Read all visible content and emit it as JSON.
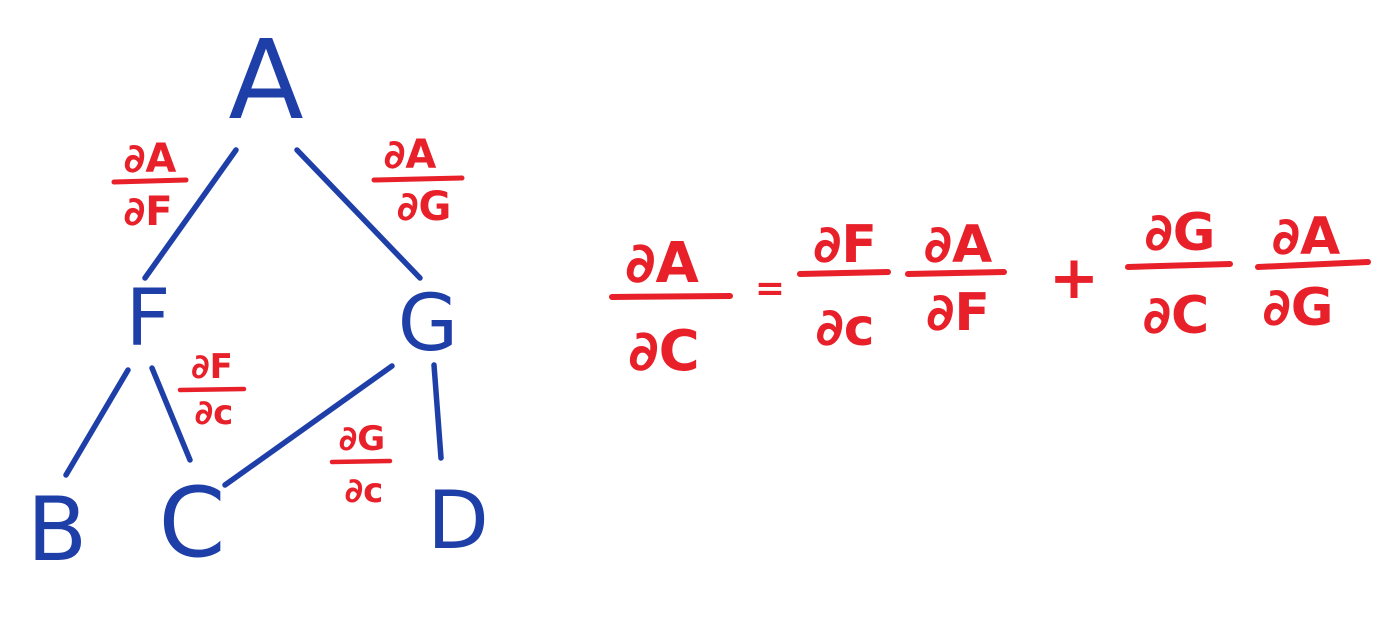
{
  "colors": {
    "tree": "#1f3fa8",
    "math": "#e8202a",
    "background": "#ffffff"
  },
  "nodes": {
    "A": "A",
    "F": "F",
    "G": "G",
    "B": "B",
    "C": "C",
    "D": "D"
  },
  "edge_labels": {
    "dA_dF": {
      "num": "∂A",
      "den": "∂F"
    },
    "dA_dG": {
      "num": "∂A",
      "den": "∂G"
    },
    "dF_dC": {
      "num": "∂F",
      "den": "∂c"
    },
    "dG_dC": {
      "num": "∂G",
      "den": "∂c"
    }
  },
  "equation": {
    "lhs": {
      "num": "∂A",
      "den": "∂C"
    },
    "equals": "=",
    "term1": [
      {
        "num": "∂F",
        "den": "∂c"
      },
      {
        "num": "∂A",
        "den": "∂F"
      }
    ],
    "plus": "+",
    "term2": [
      {
        "num": "∂G",
        "den": "∂C"
      },
      {
        "num": "∂A",
        "den": "∂G"
      }
    ]
  }
}
